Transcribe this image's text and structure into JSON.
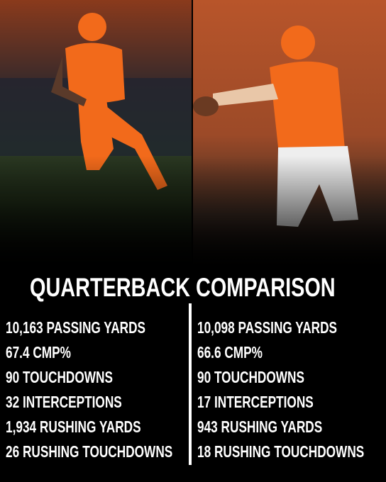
{
  "title": "QUARTERBACK COMPARISON",
  "left_player": {
    "stats": [
      "10,163 PASSING YARDS",
      "67.4 CMP%",
      "90 TOUCHDOWNS",
      "32 INTERCEPTIONS",
      "1,934 RUSHING YARDS",
      "26 RUSHING TOUCHDOWNS"
    ]
  },
  "right_player": {
    "stats": [
      "10,098 PASSING YARDS",
      "66.6 CMP%",
      "90 TOUCHDOWNS",
      "17 INTERCEPTIONS",
      "943 RUSHING YARDS",
      "18 RUSHING TOUCHDOWNS"
    ]
  }
}
